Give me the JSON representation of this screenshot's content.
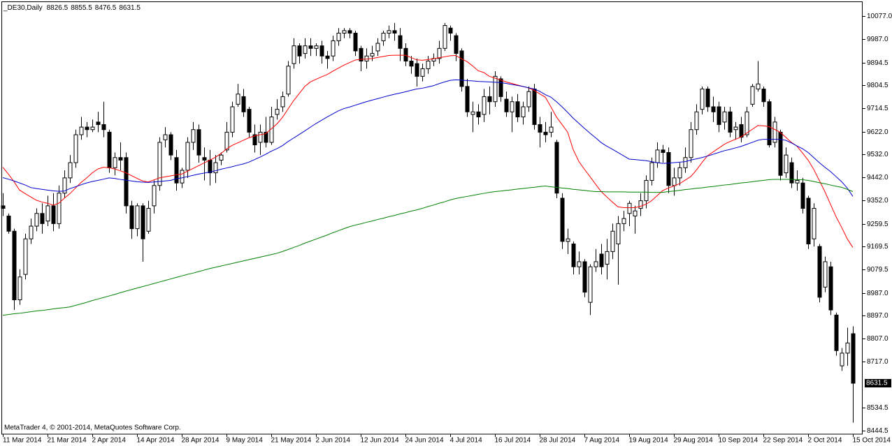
{
  "chart_data": {
    "type": "candlestick",
    "title": "_DE30,Daily",
    "footer": "MetaTrader 4, © 2001-2014, MetaQuotes Software Corp.",
    "bull_color": "#ffffff",
    "bear_color": "#000000",
    "wick_color": "#000000",
    "categories": [
      "11 Mar 2014",
      null,
      null,
      null,
      null,
      null,
      null,
      null,
      "21 Mar 2014",
      null,
      null,
      null,
      null,
      null,
      null,
      null,
      "2 Apr 2014",
      null,
      null,
      null,
      null,
      null,
      null,
      null,
      "14 Apr 2014",
      null,
      null,
      null,
      null,
      null,
      null,
      null,
      "28 Apr 2014",
      null,
      null,
      null,
      null,
      null,
      null,
      null,
      "9 May 2014",
      null,
      null,
      null,
      null,
      null,
      null,
      null,
      "21 May 2014",
      null,
      null,
      null,
      null,
      null,
      null,
      null,
      "2 Jun 2014",
      null,
      null,
      null,
      null,
      null,
      null,
      null,
      "12 Jun 2014",
      null,
      null,
      null,
      null,
      null,
      null,
      null,
      "24 Jun 2014",
      null,
      null,
      null,
      null,
      null,
      null,
      null,
      "4 Jul 2014",
      null,
      null,
      null,
      null,
      null,
      null,
      null,
      "16 Jul 2014",
      null,
      null,
      null,
      null,
      null,
      null,
      null,
      "28 Jul 2014",
      null,
      null,
      null,
      null,
      null,
      null,
      null,
      "7 Aug 2014",
      null,
      null,
      null,
      null,
      null,
      null,
      null,
      "19 Aug 2014",
      null,
      null,
      null,
      null,
      null,
      null,
      null,
      "29 Aug 2014",
      null,
      null,
      null,
      null,
      null,
      null,
      null,
      "10 Sep 2014",
      null,
      null,
      null,
      null,
      null,
      null,
      null,
      "22 Sep 2014",
      null,
      null,
      null,
      null,
      null,
      null,
      null,
      "2 Oct 2014",
      null,
      null,
      null,
      null,
      null,
      null,
      null,
      "15 Oct 2014"
    ],
    "open": [
      9330,
      9290,
      9230,
      8960,
      9060,
      9200,
      9250,
      9300,
      9270,
      9330,
      9260,
      9380,
      9440,
      9500,
      9610,
      9640,
      9630,
      9660,
      9650,
      9620,
      9480,
      9520,
      9520,
      9330,
      9240,
      9330,
      9230,
      9330,
      9410,
      9590,
      9610,
      9520,
      9420,
      9470,
      9580,
      9630,
      9520,
      9510,
      9460,
      9510,
      9550,
      9620,
      9730,
      9760,
      9710,
      9610,
      9580,
      9620,
      9580,
      9690,
      9720,
      9770,
      9890,
      9960,
      9930,
      9960,
      9950,
      9960,
      9920,
      9920,
      9980,
      10010,
      10020,
      10010,
      9950,
      9900,
      9920,
      9940,
      9980,
      10010,
      10020,
      10000,
      9950,
      9900,
      9890,
      9840,
      9870,
      9900,
      9910,
      9950,
      10030,
      10000,
      9940,
      9800,
      9690,
      9700,
      9690,
      9760,
      9740,
      9830,
      9750,
      9700,
      9740,
      9680,
      9720,
      9790,
      9650,
      9620,
      9620,
      9580,
      9360,
      9190,
      9180,
      9090,
      9110,
      8950,
      9090,
      9140,
      9100,
      9150,
      9180,
      9260,
      9300,
      9290,
      9320,
      9350,
      9430,
      9500,
      9550,
      9540,
      9410,
      9440,
      9480,
      9520,
      9630,
      9710,
      9790,
      9720,
      9720,
      9660,
      9700,
      9630,
      9650,
      9610,
      9730,
      9790,
      9790,
      9740,
      9580,
      9620,
      9460,
      9500,
      9420,
      9420,
      9360,
      9200,
      9170,
      9010,
      9090,
      8900,
      8700,
      8750,
      8826.5
    ],
    "high": [
      9380,
      9300,
      9240,
      9080,
      9220,
      9280,
      9320,
      9340,
      9370,
      9380,
      9410,
      9470,
      9530,
      9630,
      9680,
      9660,
      9670,
      9700,
      9740,
      9630,
      9540,
      9580,
      9540,
      9350,
      9340,
      9340,
      9350,
      9430,
      9600,
      9640,
      9620,
      9550,
      9480,
      9600,
      9660,
      9650,
      9560,
      9550,
      9530,
      9540,
      9660,
      9740,
      9810,
      9790,
      9720,
      9650,
      9650,
      9680,
      9720,
      9750,
      9780,
      9900,
      9990,
      9970,
      9990,
      9990,
      9970,
      9980,
      9940,
      10000,
      10030,
      10030,
      10030,
      10020,
      9960,
      9950,
      9960,
      9990,
      10020,
      10040,
      10050,
      10030,
      9970,
      9920,
      9910,
      9890,
      9920,
      9930,
      9980,
      10050,
      10040,
      10010,
      9950,
      9830,
      9740,
      9730,
      9790,
      9800,
      9860,
      9840,
      9780,
      9760,
      9770,
      9740,
      9800,
      9810,
      9680,
      9660,
      9700,
      9590,
      9380,
      9240,
      9190,
      9150,
      9120,
      9100,
      9160,
      9180,
      9200,
      9260,
      9290,
      9310,
      9350,
      9330,
      9380,
      9450,
      9520,
      9580,
      9570,
      9560,
      9480,
      9500,
      9560,
      9660,
      9730,
      9800,
      9800,
      9760,
      9740,
      9720,
      9720,
      9660,
      9680,
      9720,
      9810,
      9900,
      9800,
      9750,
      9680,
      9630,
      9560,
      9520,
      9470,
      9440,
      9370,
      9340,
      9180,
      9130,
      9110,
      8910,
      8770,
      8850,
      8855.5
    ],
    "low": [
      9290,
      9220,
      8920,
      8940,
      9040,
      9180,
      9230,
      9220,
      9250,
      9230,
      9240,
      9360,
      9420,
      9480,
      9590,
      9600,
      9620,
      9620,
      9600,
      9460,
      9450,
      9470,
      9300,
      9200,
      9210,
      9110,
      9220,
      9300,
      9390,
      9560,
      9510,
      9390,
      9400,
      9440,
      9550,
      9500,
      9430,
      9410,
      9420,
      9490,
      9540,
      9600,
      9720,
      9680,
      9600,
      9540,
      9530,
      9560,
      9570,
      9670,
      9700,
      9760,
      9870,
      9890,
      9910,
      9920,
      9920,
      9890,
      9870,
      9900,
      9960,
      9990,
      9990,
      9920,
      9860,
      9870,
      9900,
      9920,
      9960,
      9990,
      9980,
      9900,
      9880,
      9850,
      9800,
      9820,
      9850,
      9880,
      9890,
      9940,
      9980,
      9900,
      9780,
      9680,
      9620,
      9650,
      9660,
      9690,
      9720,
      9740,
      9680,
      9620,
      9660,
      9650,
      9700,
      9630,
      9560,
      9580,
      9600,
      9360,
      9160,
      9140,
      9060,
      9060,
      8970,
      8900,
      9070,
      9060,
      9040,
      9120,
      9020,
      9230,
      9250,
      9220,
      9290,
      9320,
      9410,
      9480,
      9500,
      9380,
      9370,
      9410,
      9460,
      9500,
      9610,
      9690,
      9700,
      9660,
      9620,
      9630,
      9600,
      9590,
      9580,
      9600,
      9720,
      9780,
      9720,
      9560,
      9560,
      9430,
      9440,
      9400,
      9390,
      9300,
      9160,
      9170,
      8950,
      8990,
      8900,
      8740,
      8680,
      8700,
      8476.5
    ],
    "close": [
      9320,
      9230,
      8960,
      9050,
      9200,
      9250,
      9300,
      9260,
      9330,
      9260,
      9380,
      9440,
      9500,
      9610,
      9640,
      9630,
      9640,
      9650,
      9630,
      9480,
      9520,
      9510,
      9330,
      9240,
      9330,
      9200,
      9320,
      9410,
      9580,
      9610,
      9530,
      9420,
      9470,
      9580,
      9630,
      9530,
      9510,
      9460,
      9500,
      9530,
      9620,
      9720,
      9770,
      9700,
      9620,
      9570,
      9620,
      9580,
      9680,
      9710,
      9760,
      9880,
      9960,
      9920,
      9960,
      9950,
      9960,
      9920,
      9910,
      9980,
      10010,
      10020,
      10010,
      9940,
      9900,
      9920,
      9930,
      9970,
      10010,
      10020,
      10010,
      9950,
      9900,
      9880,
      9840,
      9870,
      9900,
      9910,
      9950,
      10040,
      10010,
      9930,
      9800,
      9700,
      9700,
      9680,
      9760,
      9740,
      9840,
      9760,
      9700,
      9740,
      9680,
      9720,
      9780,
      9650,
      9620,
      9610,
      9640,
      9380,
      9190,
      9200,
      9090,
      9110,
      8990,
      9090,
      9110,
      9090,
      9150,
      9230,
      9260,
      9280,
      9340,
      9310,
      9350,
      9430,
      9500,
      9550,
      9540,
      9410,
      9440,
      9480,
      9520,
      9630,
      9700,
      9790,
      9720,
      9700,
      9650,
      9700,
      9620,
      9640,
      9600,
      9700,
      9800,
      9810,
      9740,
      9570,
      9660,
      9450,
      9530,
      9420,
      9430,
      9320,
      9180,
      9320,
      8970,
      9110,
      8920,
      8760,
      8750,
      8790,
      8631.5
    ],
    "series": [
      {
        "color": "#ff0000",
        "values": [
          9482,
          9455,
          9425,
          9392,
          9378,
          9365,
          9352,
          9345,
          9340,
          9333,
          9340,
          9360,
          9378,
          9400,
          9422,
          9440,
          9460,
          9475,
          9482,
          9480,
          9475,
          9468,
          9460,
          9449,
          9438,
          9428,
          9424,
          9432,
          9440,
          9444,
          9448,
          9452,
          9455,
          9466,
          9477,
          9488,
          9499,
          9510,
          9521,
          9536,
          9554,
          9568,
          9578,
          9588,
          9598,
          9605,
          9610,
          9614,
          9633,
          9652,
          9678,
          9711,
          9744,
          9772,
          9800,
          9818,
          9828,
          9838,
          9847,
          9860,
          9872,
          9884,
          9894,
          9904,
          9907,
          9908,
          9910,
          9914,
          9918,
          9922,
          9923,
          9923,
          9923,
          9914,
          9905,
          9903,
          9906,
          9909,
          9913,
          9917,
          9921,
          9922,
          9909,
          9898,
          9881,
          9862,
          9855,
          9840,
          9833,
          9826,
          9818,
          9812,
          9806,
          9800,
          9794,
          9785,
          9771,
          9758,
          9720,
          9680,
          9650,
          9620,
          9551,
          9505,
          9474,
          9445,
          9415,
          9386,
          9365,
          9345,
          9326,
          9323,
          9323,
          9323,
          9328,
          9336,
          9350,
          9370,
          9390,
          9400,
          9408,
          9417,
          9431,
          9445,
          9470,
          9500,
          9527,
          9542,
          9557,
          9572,
          9583,
          9592,
          9601,
          9616,
          9631,
          9646,
          9645,
          9642,
          9631,
          9620,
          9600,
          9580,
          9565,
          9538,
          9510,
          9474,
          9430,
          9386,
          9336,
          9287,
          9245,
          9200,
          9166
        ]
      },
      {
        "color": "#0000cc",
        "values": [
          9441,
          9435,
          9428,
          9420,
          9412,
          9402,
          9398,
          9395,
          9392,
          9389,
          9387,
          9388,
          9398,
          9405,
          9413,
          9420,
          9426,
          9430,
          9435,
          9440,
          9438,
          9434,
          9431,
          9428,
          9425,
          9423,
          9422,
          9424,
          9426,
          9428,
          9430,
          9437,
          9440,
          9445,
          9450,
          9455,
          9459,
          9463,
          9468,
          9474,
          9479,
          9484,
          9490,
          9495,
          9502,
          9512,
          9522,
          9533,
          9545,
          9555,
          9567,
          9583,
          9597,
          9611,
          9625,
          9640,
          9654,
          9667,
          9680,
          9692,
          9704,
          9713,
          9719,
          9726,
          9733,
          9740,
          9746,
          9752,
          9758,
          9764,
          9769,
          9774,
          9779,
          9785,
          9790,
          9793,
          9798,
          9803,
          9811,
          9818,
          9824,
          9826,
          9825,
          9823,
          9822,
          9820,
          9819,
          9818,
          9817,
          9815,
          9812,
          9808,
          9804,
          9800,
          9795,
          9790,
          9781,
          9768,
          9758,
          9740,
          9720,
          9698,
          9675,
          9655,
          9635,
          9616,
          9598,
          9579,
          9565,
          9553,
          9540,
          9527,
          9514,
          9512,
          9510,
          9508,
          9504,
          9500,
          9497,
          9498,
          9500,
          9502,
          9504,
          9510,
          9515,
          9520,
          9526,
          9533,
          9540,
          9547,
          9552,
          9558,
          9564,
          9572,
          9580,
          9588,
          9592,
          9592,
          9592,
          9592,
          9588,
          9578,
          9566,
          9555,
          9540,
          9520,
          9500,
          9482,
          9465,
          9445,
          9425,
          9400,
          9367
        ]
      },
      {
        "color": "#008000",
        "values": [
          8899,
          8902,
          8905,
          8907,
          8910,
          8913,
          8916,
          8918,
          8921,
          8924,
          8927,
          8929,
          8932,
          8938,
          8944,
          8950,
          8957,
          8963,
          8969,
          8975,
          8981,
          8988,
          8994,
          9000,
          9006,
          9012,
          9018,
          9024,
          9030,
          9036,
          9042,
          9048,
          9054,
          9060,
          9065,
          9071,
          9077,
          9083,
          9088,
          9093,
          9098,
          9103,
          9108,
          9113,
          9118,
          9123,
          9128,
          9133,
          9138,
          9143,
          9150,
          9158,
          9166,
          9174,
          9183,
          9191,
          9199,
          9207,
          9215,
          9224,
          9232,
          9240,
          9248,
          9254,
          9259,
          9265,
          9270,
          9276,
          9281,
          9287,
          9292,
          9298,
          9303,
          9309,
          9314,
          9320,
          9327,
          9333,
          9340,
          9346,
          9353,
          9359,
          9363,
          9367,
          9371,
          9375,
          9379,
          9383,
          9386,
          9388,
          9391,
          9393,
          9396,
          9398,
          9401,
          9403,
          9406,
          9408,
          9405,
          9403,
          9400,
          9398,
          9395,
          9393,
          9391,
          9388,
          9386,
          9386,
          9385,
          9385,
          9385,
          9385,
          9384,
          9384,
          9384,
          9384,
          9383,
          9383,
          9383,
          9386,
          9388,
          9391,
          9394,
          9396,
          9399,
          9401,
          9404,
          9406,
          9409,
          9412,
          9414,
          9417,
          9420,
          9422,
          9425,
          9428,
          9430,
          9433,
          9434,
          9434,
          9434,
          9434,
          9433,
          9433,
          9430,
          9426,
          9421,
          9417,
          9412,
          9407,
          9403,
          9395,
          9386
        ]
      }
    ],
    "ylim": [
      8431,
      10135
    ],
    "yticks": [
      {
        "value": 10077,
        "label": "10077.0"
      },
      {
        "value": 9987,
        "label": "9987.0"
      },
      9894.5,
      9804.5,
      9714.5,
      {
        "value": 9622,
        "label": "9622.0"
      },
      {
        "value": 9532,
        "label": "9532.0"
      },
      {
        "value": 9442,
        "label": "9442.0"
      },
      {
        "value": 9352,
        "label": "9352.0"
      },
      9259.5,
      9169.5,
      9079.5,
      {
        "value": 8987,
        "label": "8987.0"
      },
      {
        "value": 8897,
        "label": "8897.0"
      },
      {
        "value": 8807,
        "label": "8807.0"
      },
      {
        "value": 8717,
        "label": "8717.0"
      },
      8534.5,
      8444.5
    ],
    "grid": false
  }
}
